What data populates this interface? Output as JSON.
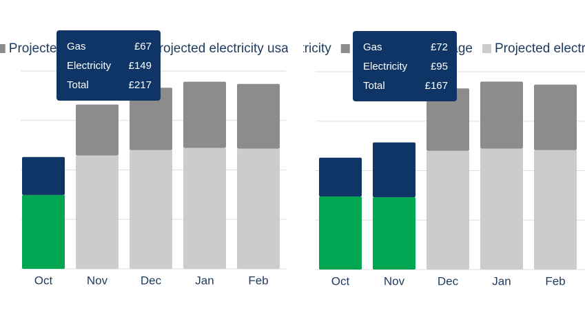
{
  "chart_data": [
    {
      "type": "bar",
      "stacked": true,
      "grid": true,
      "categories": [
        "Oct",
        "Nov",
        "Dec",
        "Jan",
        "Feb"
      ],
      "series": [
        {
          "name": "Gas",
          "color": "#0f3566",
          "values": [
            50,
            null,
            null,
            null,
            null
          ]
        },
        {
          "name": "Electricity",
          "color": "#00a651",
          "values": [
            97,
            null,
            null,
            null,
            null
          ]
        },
        {
          "name": "Projected gas usage",
          "color": "#8c8c8c",
          "values": [
            null,
            67,
            82,
            87,
            85
          ]
        },
        {
          "name": "Projected electricity usage",
          "color": "#cccccc",
          "values": [
            null,
            149,
            156,
            159,
            158
          ]
        }
      ],
      "ylim": [
        0,
        260
      ],
      "yticks": [
        0,
        65,
        130,
        195,
        260
      ],
      "tooltip": {
        "category": "Nov",
        "rows": [
          {
            "label": "Gas",
            "value": "£67"
          },
          {
            "label": "Electricity",
            "value": "£149"
          },
          {
            "label": "Total",
            "value": "£217"
          }
        ]
      }
    },
    {
      "type": "bar",
      "stacked": true,
      "grid": true,
      "categories": [
        "Oct",
        "Nov",
        "Dec",
        "Jan",
        "Feb"
      ],
      "series": [
        {
          "name": "Gas",
          "color": "#0f3566",
          "values": [
            51,
            72,
            null,
            null,
            null
          ]
        },
        {
          "name": "Electricity",
          "color": "#00a651",
          "values": [
            96,
            95,
            null,
            null,
            null
          ]
        },
        {
          "name": "Projected gas usage",
          "color": "#8c8c8c",
          "values": [
            null,
            null,
            82,
            88,
            86
          ]
        },
        {
          "name": "Projected electricity usage",
          "color": "#cccccc",
          "values": [
            null,
            null,
            156,
            159,
            157
          ]
        }
      ],
      "ylim": [
        0,
        260
      ],
      "yticks": [
        0,
        65,
        130,
        195,
        260
      ],
      "tooltip": {
        "category": "Nov",
        "rows": [
          {
            "label": "Gas",
            "value": "£72"
          },
          {
            "label": "Electricity",
            "value": "£95"
          },
          {
            "label": "Total",
            "value": "£167"
          }
        ]
      }
    }
  ]
}
